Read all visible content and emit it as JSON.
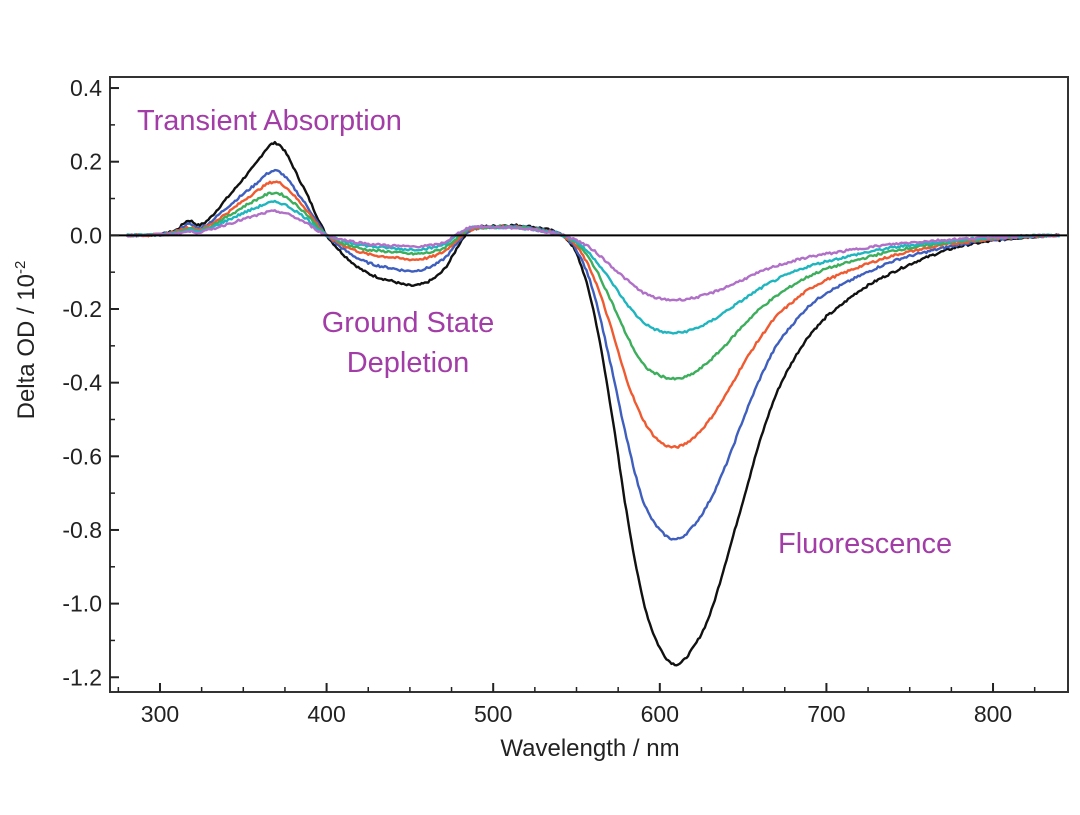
{
  "colors": {
    "annotation": "#a23ca6",
    "axis": "#222222",
    "frame": "#333333",
    "zero_line": "#000000"
  },
  "chart_data": {
    "type": "line",
    "title": "",
    "xlabel": "Wavelength / nm",
    "ylabel": "Delta OD / 10",
    "ylabel_exponent": "-2",
    "xlim": [
      270,
      845
    ],
    "ylim": [
      -1.24,
      0.43
    ],
    "x_ticks": [
      300,
      400,
      500,
      600,
      700,
      800
    ],
    "x_tick_labels": [
      "300",
      "400",
      "500",
      "600",
      "700",
      "800"
    ],
    "y_ticks": [
      0.4,
      0.2,
      0.0,
      -0.2,
      -0.4,
      -0.6,
      -0.8,
      -1.0,
      -1.2
    ],
    "y_tick_labels": [
      "0.4",
      "0.2",
      "0.0",
      "-0.2",
      "-0.4",
      "-0.6",
      "-0.8",
      "-1.0",
      "-1.2"
    ],
    "zero_line": 0,
    "grid": false,
    "legend": "none",
    "annotations": [
      {
        "text": "Transient Absorption"
      },
      {
        "text": "Ground State"
      },
      {
        "text": "Depletion"
      },
      {
        "text": "Fluorescence"
      }
    ],
    "x": [
      280,
      300,
      310,
      317,
      325,
      340,
      355,
      370,
      385,
      400,
      420,
      440,
      455,
      470,
      485,
      500,
      520,
      540,
      550,
      560,
      570,
      580,
      590,
      600,
      610,
      620,
      630,
      640,
      650,
      660,
      670,
      680,
      690,
      700,
      720,
      740,
      760,
      780,
      800,
      820,
      840
    ],
    "series": [
      {
        "color": "#111111",
        "values": [
          0,
          0.002,
          0.015,
          0.04,
          0.03,
          0.1,
          0.18,
          0.25,
          0.14,
          0.0,
          -0.09,
          -0.125,
          -0.135,
          -0.095,
          0.01,
          0.025,
          0.025,
          0.005,
          -0.05,
          -0.2,
          -0.45,
          -0.75,
          -0.99,
          -1.12,
          -1.165,
          -1.12,
          -1.03,
          -0.88,
          -0.72,
          -0.56,
          -0.43,
          -0.34,
          -0.27,
          -0.22,
          -0.15,
          -0.1,
          -0.06,
          -0.03,
          -0.015,
          -0.005,
          0
        ]
      },
      {
        "color": "#3f5fbf",
        "values": [
          0,
          0.002,
          0.012,
          0.03,
          0.022,
          0.075,
          0.13,
          0.175,
          0.1,
          0.0,
          -0.065,
          -0.09,
          -0.095,
          -0.065,
          0.01,
          0.022,
          0.022,
          0.004,
          -0.04,
          -0.15,
          -0.34,
          -0.55,
          -0.72,
          -0.8,
          -0.825,
          -0.79,
          -0.72,
          -0.62,
          -0.5,
          -0.39,
          -0.3,
          -0.24,
          -0.19,
          -0.155,
          -0.11,
          -0.07,
          -0.045,
          -0.025,
          -0.012,
          -0.004,
          0
        ]
      },
      {
        "color": "#f05a30",
        "values": [
          0,
          0.002,
          0.01,
          0.022,
          0.018,
          0.06,
          0.11,
          0.145,
          0.085,
          0.0,
          -0.045,
          -0.06,
          -0.065,
          -0.045,
          0.012,
          0.022,
          0.02,
          0.003,
          -0.03,
          -0.11,
          -0.24,
          -0.39,
          -0.5,
          -0.56,
          -0.575,
          -0.55,
          -0.5,
          -0.43,
          -0.35,
          -0.28,
          -0.22,
          -0.18,
          -0.145,
          -0.12,
          -0.085,
          -0.055,
          -0.035,
          -0.02,
          -0.01,
          -0.003,
          0
        ]
      },
      {
        "color": "#3cae5c",
        "values": [
          0,
          0.002,
          0.008,
          0.018,
          0.015,
          0.05,
          0.09,
          0.115,
          0.07,
          0.0,
          -0.035,
          -0.045,
          -0.05,
          -0.035,
          0.015,
          0.022,
          0.02,
          0.003,
          -0.022,
          -0.08,
          -0.17,
          -0.27,
          -0.35,
          -0.38,
          -0.39,
          -0.375,
          -0.34,
          -0.295,
          -0.245,
          -0.2,
          -0.165,
          -0.135,
          -0.11,
          -0.09,
          -0.065,
          -0.042,
          -0.028,
          -0.016,
          -0.008,
          -0.002,
          0
        ]
      },
      {
        "color": "#1fb5bf",
        "values": [
          0,
          0.002,
          0.006,
          0.014,
          0.012,
          0.04,
          0.07,
          0.09,
          0.055,
          0.0,
          -0.025,
          -0.035,
          -0.038,
          -0.025,
          0.018,
          0.022,
          0.018,
          0.003,
          -0.018,
          -0.06,
          -0.12,
          -0.185,
          -0.235,
          -0.26,
          -0.265,
          -0.255,
          -0.235,
          -0.205,
          -0.175,
          -0.145,
          -0.12,
          -0.1,
          -0.083,
          -0.07,
          -0.05,
          -0.033,
          -0.022,
          -0.013,
          -0.006,
          -0.002,
          0
        ]
      },
      {
        "color": "#b070c8",
        "values": [
          0,
          0.002,
          0.005,
          0.01,
          0.01,
          0.03,
          0.05,
          0.065,
          0.04,
          0.0,
          -0.02,
          -0.028,
          -0.03,
          -0.02,
          0.02,
          0.022,
          0.018,
          0.003,
          -0.013,
          -0.04,
          -0.08,
          -0.12,
          -0.155,
          -0.172,
          -0.175,
          -0.17,
          -0.158,
          -0.14,
          -0.12,
          -0.1,
          -0.083,
          -0.07,
          -0.058,
          -0.05,
          -0.036,
          -0.024,
          -0.016,
          -0.01,
          -0.005,
          -0.002,
          0
        ]
      }
    ]
  }
}
